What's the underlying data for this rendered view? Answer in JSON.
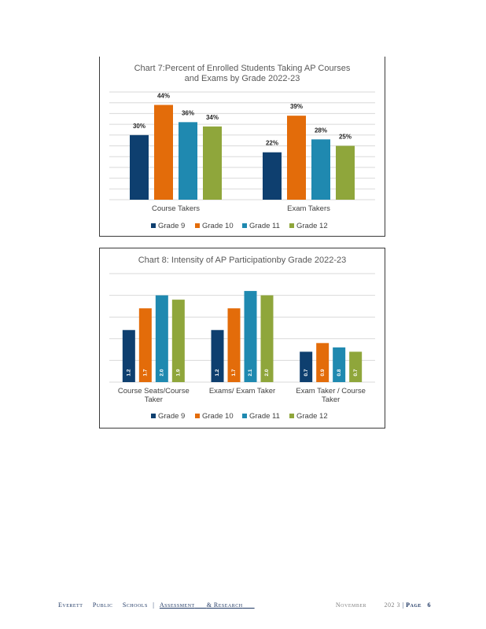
{
  "chart_data": [
    {
      "type": "bar",
      "title_lines": [
        "Chart 7:Percent of Enrolled Students Taking AP Courses",
        "and Exams by Grade 2022-23"
      ],
      "categories": [
        "Course Takers",
        "Exam Takers"
      ],
      "series": [
        {
          "name": "Grade 9",
          "values": [
            30,
            22
          ],
          "labels": [
            "30%",
            "22%"
          ],
          "color": "#0e3f6f"
        },
        {
          "name": "Grade 10",
          "values": [
            44,
            39
          ],
          "labels": [
            "44%",
            "39%"
          ],
          "color": "#e36c0a"
        },
        {
          "name": "Grade 11",
          "values": [
            36,
            28
          ],
          "labels": [
            "36%",
            "28%"
          ],
          "color": "#1f89b0"
        },
        {
          "name": "Grade 12",
          "values": [
            34,
            25
          ],
          "labels": [
            "34%",
            "25%"
          ],
          "color": "#8fa63b"
        }
      ],
      "ylim": [
        0,
        50
      ],
      "grid": true,
      "legend_position": "bottom"
    },
    {
      "type": "bar",
      "title_lines": [
        "Chart 8: Intensity of AP Participationby Grade 2022-23"
      ],
      "categories": [
        [
          "Course Seats/Course",
          "Taker"
        ],
        [
          "Exams/ Exam Taker"
        ],
        [
          "Exam Taker / Course",
          "Taker"
        ]
      ],
      "series": [
        {
          "name": "Grade 9",
          "values": [
            1.2,
            1.2,
            0.7
          ],
          "labels": [
            "1.2",
            "1.2",
            "0.7"
          ],
          "color": "#0e3f6f"
        },
        {
          "name": "Grade 10",
          "values": [
            1.7,
            1.7,
            0.9
          ],
          "labels": [
            "1.7",
            "1.7",
            "0.9"
          ],
          "color": "#e36c0a"
        },
        {
          "name": "Grade 11",
          "values": [
            2.0,
            2.1,
            0.8
          ],
          "labels": [
            "2.0",
            "2.1",
            "0.8"
          ],
          "color": "#1f89b0"
        },
        {
          "name": "Grade 12",
          "values": [
            1.9,
            2.0,
            0.7
          ],
          "labels": [
            "1.9",
            "2.0",
            "0.7"
          ],
          "color": "#8fa63b"
        }
      ],
      "ylim": [
        0,
        2.5
      ],
      "grid": true,
      "legend_position": "bottom"
    }
  ],
  "footer": {
    "org_words": [
      "Everett",
      "Public",
      "Schools"
    ],
    "separator": "|",
    "dept_words": [
      "Assessment",
      "& Research"
    ],
    "month": "November",
    "year": "202 3",
    "page_label": "Page",
    "page_number": "6"
  }
}
